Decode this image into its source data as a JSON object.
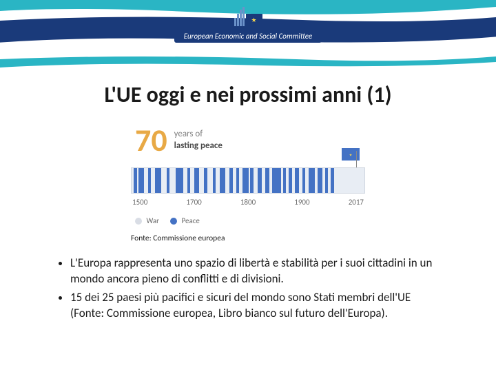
{
  "header": {
    "org_name": "European Economic and Social Committee",
    "wave_teal": "#2ab5c4",
    "wave_navy": "#1a3a7a",
    "star_color": "#f9d74b"
  },
  "title": "L'UE oggi e nei prossimi anni (1)",
  "infographic": {
    "big_number": "70",
    "tagline_line1": "years of",
    "tagline_line2": "lasting peace",
    "number_color": "#e8a945",
    "tagline_color": "#7f7f7f",
    "flag_bg": "#4472c4",
    "timeline": {
      "bg": "#e8edf4",
      "border": "#d0d6e0",
      "war_color": "#4472c4",
      "range": [
        1500,
        2017
      ],
      "labels": [
        "1500",
        "1700",
        "1800",
        "1900",
        "2017"
      ],
      "war_bars_pct": [
        [
          1,
          1.4
        ],
        [
          3,
          2.3
        ],
        [
          7,
          1.2
        ],
        [
          10,
          2.8
        ],
        [
          15,
          1.4
        ],
        [
          19,
          3.2
        ],
        [
          24,
          1.2
        ],
        [
          27,
          2.0
        ],
        [
          31,
          1.6
        ],
        [
          35,
          1.2
        ],
        [
          38,
          2.3
        ],
        [
          42,
          1.4
        ],
        [
          45,
          1.2
        ],
        [
          47.5,
          2.8
        ],
        [
          51,
          1.4
        ],
        [
          54,
          1.9
        ],
        [
          57.5,
          1.6
        ],
        [
          60.5,
          3.6
        ],
        [
          65,
          1.2
        ],
        [
          67.5,
          1.4
        ],
        [
          70,
          1.9
        ],
        [
          73.5,
          1.2
        ],
        [
          76,
          2.6
        ],
        [
          80,
          1.9
        ],
        [
          83,
          1.2
        ],
        [
          85.5,
          1.4
        ]
      ]
    },
    "legend": {
      "war_label": "War",
      "war_color": "#d9dde5",
      "peace_label": "Peace",
      "peace_color": "#4472c4"
    }
  },
  "source": "Fonte: Commissione europea",
  "bullets": [
    "L'Europa rappresenta uno spazio di libertà e stabilità per i suoi cittadini in un mondo ancora pieno di conflitti e di divisioni.",
    "15 dei 25 paesi più pacifici e sicuri del mondo sono Stati membri dell'UE (Fonte: Commissione europea, Libro bianco sul futuro dell'Europa)."
  ]
}
